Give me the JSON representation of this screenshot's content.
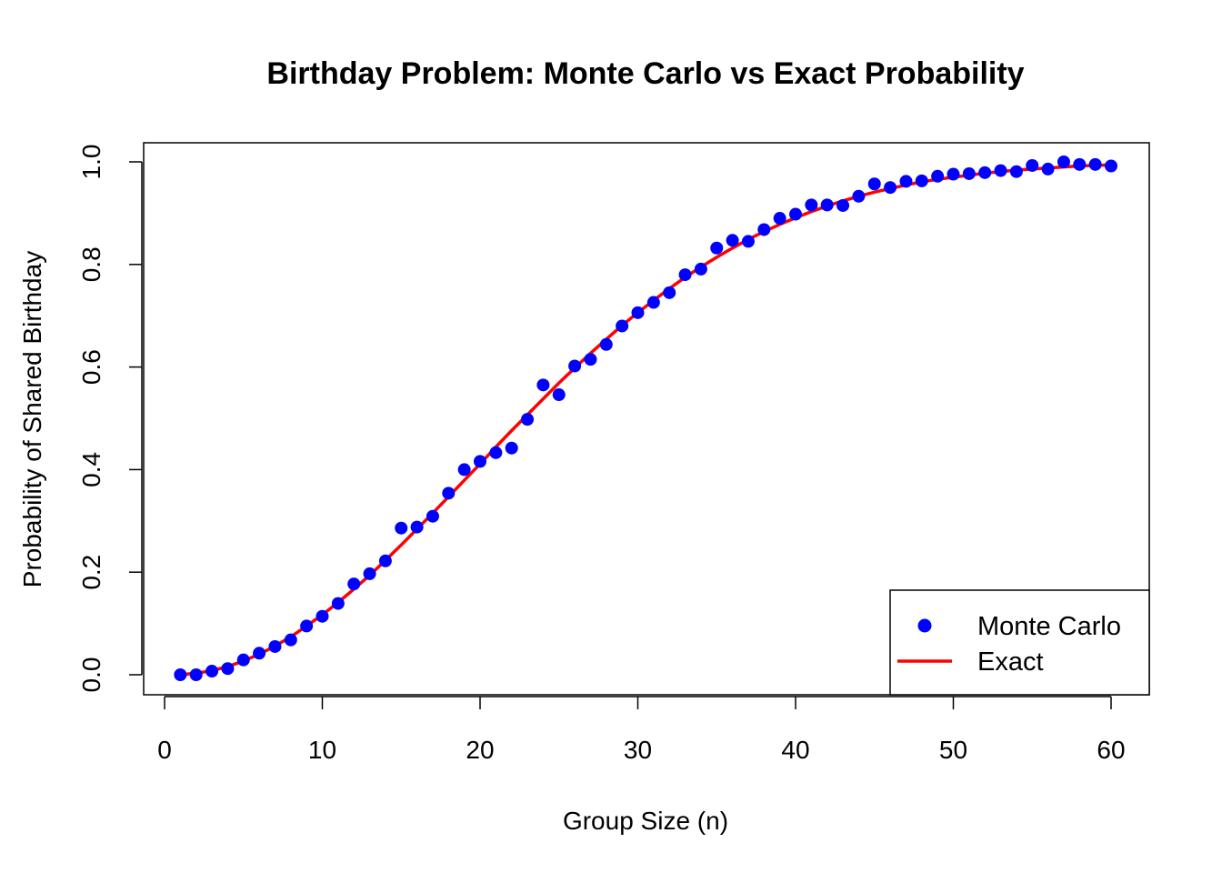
{
  "chart_data": {
    "type": "scatter",
    "title": "Birthday Problem: Monte Carlo vs Exact Probability",
    "xlabel": "Group Size (n)",
    "ylabel": "Probability of Shared Birthday",
    "xlim": [
      0,
      60
    ],
    "ylim": [
      0.0,
      1.0
    ],
    "x_ticks": [
      0,
      10,
      20,
      30,
      40,
      50,
      60
    ],
    "x_tick_labels": [
      "0",
      "10",
      "20",
      "30",
      "40",
      "50",
      "60"
    ],
    "y_ticks": [
      0.0,
      0.2,
      0.4,
      0.6,
      0.8,
      1.0
    ],
    "y_tick_labels": [
      "0.0",
      "0.2",
      "0.4",
      "0.6",
      "0.8",
      "1.0"
    ],
    "grid": false,
    "legend_position": "bottom-right",
    "series": [
      {
        "name": "Monte Carlo",
        "kind": "points",
        "color": "#0000ff",
        "x": [
          1,
          2,
          3,
          4,
          5,
          6,
          7,
          8,
          9,
          10,
          11,
          12,
          13,
          14,
          15,
          16,
          17,
          18,
          19,
          20,
          21,
          22,
          23,
          24,
          25,
          26,
          27,
          28,
          29,
          30,
          31,
          32,
          33,
          34,
          35,
          36,
          37,
          38,
          39,
          40,
          41,
          42,
          43,
          44,
          45,
          46,
          47,
          48,
          49,
          50,
          51,
          52,
          53,
          54,
          55,
          56,
          57,
          58,
          59,
          60
        ],
        "values": [
          0.0,
          0.0,
          0.007,
          0.012,
          0.029,
          0.042,
          0.055,
          0.068,
          0.095,
          0.114,
          0.139,
          0.177,
          0.197,
          0.222,
          0.286,
          0.288,
          0.309,
          0.354,
          0.4,
          0.416,
          0.433,
          0.442,
          0.498,
          0.565,
          0.546,
          0.602,
          0.615,
          0.644,
          0.68,
          0.706,
          0.726,
          0.745,
          0.78,
          0.791,
          0.832,
          0.847,
          0.845,
          0.868,
          0.89,
          0.898,
          0.916,
          0.916,
          0.915,
          0.933,
          0.957,
          0.95,
          0.962,
          0.963,
          0.972,
          0.976,
          0.977,
          0.979,
          0.983,
          0.981,
          0.993,
          0.986,
          1.0,
          0.995,
          0.995,
          0.992
        ]
      },
      {
        "name": "Exact",
        "kind": "line",
        "color": "#ff0000",
        "x": [
          1,
          2,
          3,
          4,
          5,
          6,
          7,
          8,
          9,
          10,
          11,
          12,
          13,
          14,
          15,
          16,
          17,
          18,
          19,
          20,
          21,
          22,
          23,
          24,
          25,
          26,
          27,
          28,
          29,
          30,
          31,
          32,
          33,
          34,
          35,
          36,
          37,
          38,
          39,
          40,
          41,
          42,
          43,
          44,
          45,
          46,
          47,
          48,
          49,
          50,
          51,
          52,
          53,
          54,
          55,
          56,
          57,
          58,
          59,
          60
        ],
        "values": [
          0.0,
          0.003,
          0.008,
          0.016,
          0.027,
          0.04,
          0.056,
          0.074,
          0.095,
          0.117,
          0.141,
          0.167,
          0.194,
          0.223,
          0.253,
          0.284,
          0.315,
          0.347,
          0.379,
          0.411,
          0.444,
          0.476,
          0.507,
          0.538,
          0.569,
          0.598,
          0.627,
          0.654,
          0.681,
          0.706,
          0.73,
          0.753,
          0.775,
          0.795,
          0.814,
          0.832,
          0.849,
          0.864,
          0.878,
          0.891,
          0.903,
          0.914,
          0.924,
          0.933,
          0.941,
          0.948,
          0.955,
          0.961,
          0.966,
          0.97,
          0.974,
          0.978,
          0.981,
          0.984,
          0.986,
          0.988,
          0.99,
          0.992,
          0.993,
          0.994
        ]
      }
    ]
  }
}
